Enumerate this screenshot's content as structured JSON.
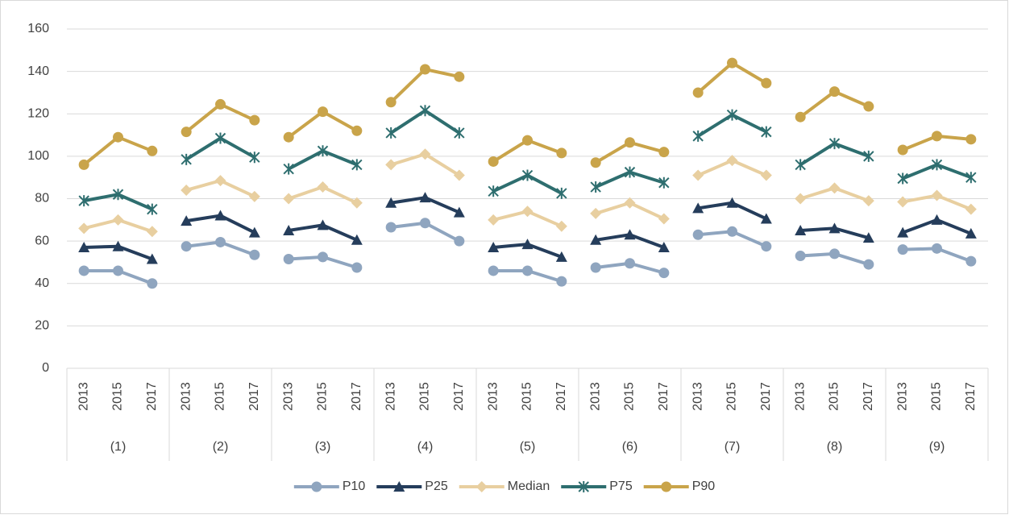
{
  "chart_data": {
    "type": "line",
    "categories": [
      "2013",
      "2015",
      "2017",
      "2013",
      "2015",
      "2017",
      "2013",
      "2015",
      "2017",
      "2013",
      "2015",
      "2017",
      "2013",
      "2015",
      "2017",
      "2013",
      "2015",
      "2017",
      "2013",
      "2015",
      "2017",
      "2013",
      "2015",
      "2017",
      "2013",
      "2015",
      "2017"
    ],
    "groups": [
      "(1)",
      "(2)",
      "(3)",
      "(4)",
      "(5)",
      "(6)",
      "(7)",
      "(8)",
      "(9)"
    ],
    "series": [
      {
        "name": "P10",
        "color": "#8fa5bf",
        "marker": "circle",
        "values": [
          46,
          46,
          40,
          57.5,
          59.5,
          53.5,
          51.5,
          52.5,
          47.5,
          66.5,
          68.5,
          60,
          46,
          46,
          41,
          47.5,
          49.5,
          45,
          63,
          64.5,
          57.5,
          53,
          54,
          49,
          56,
          56.5,
          50.5
        ]
      },
      {
        "name": "P25",
        "color": "#253d5b",
        "marker": "triangle",
        "values": [
          57,
          57.5,
          51.5,
          69.5,
          72,
          64,
          65,
          67.5,
          60.5,
          78,
          80.5,
          73.5,
          57,
          58.5,
          52.5,
          60.5,
          63,
          57,
          75.5,
          78,
          70.5,
          65,
          66,
          61.5,
          64,
          70,
          63.5
        ]
      },
      {
        "name": "Median",
        "color": "#e8cfa0",
        "marker": "diamond",
        "values": [
          66,
          70,
          64.5,
          84,
          88.5,
          81,
          80,
          85.5,
          78,
          96,
          101,
          91,
          70,
          74,
          67,
          73,
          78,
          70.5,
          91,
          98,
          91,
          80,
          85,
          79,
          78.5,
          81.5,
          75
        ]
      },
      {
        "name": "P75",
        "color": "#2e6e6f",
        "marker": "star",
        "values": [
          79,
          82,
          75,
          98.5,
          108.5,
          99.5,
          94,
          102.5,
          96,
          111,
          121.5,
          111,
          83.5,
          91,
          82.5,
          85.5,
          92.5,
          87.5,
          109.5,
          119.5,
          111.5,
          96,
          106,
          100,
          89.5,
          96,
          90
        ]
      },
      {
        "name": "P90",
        "color": "#c9a44a",
        "marker": "circle",
        "values": [
          96,
          109,
          102.5,
          111.5,
          124.5,
          117,
          109,
          121,
          112,
          125.5,
          141,
          137.5,
          97.5,
          107.5,
          101.5,
          97,
          106.5,
          102,
          130,
          144,
          134.5,
          118.5,
          130.5,
          123.5,
          103,
          109.5,
          108
        ]
      }
    ],
    "ylim": [
      0,
      160
    ],
    "yticks": [
      0,
      20,
      40,
      60,
      80,
      100,
      120,
      140,
      160
    ],
    "grid": true,
    "legend": "bottom"
  }
}
